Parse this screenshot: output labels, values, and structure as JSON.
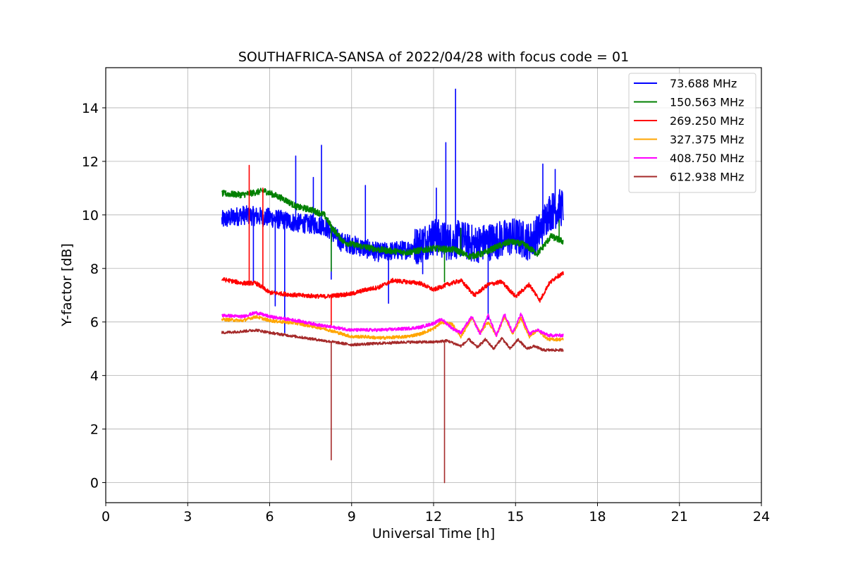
{
  "chart_data": {
    "type": "line",
    "title": "SOUTHAFRICA-SANSA of 2022/04/28 with focus code = 01",
    "xlabel": "Universal Time [h]",
    "ylabel": "Y-factor [dB]",
    "xlim": [
      0,
      24
    ],
    "ylim": [
      -0.75,
      15.5
    ],
    "xticks": [
      0,
      3,
      6,
      9,
      12,
      15,
      18,
      21,
      24
    ],
    "yticks": [
      0,
      2,
      4,
      6,
      8,
      10,
      12,
      14
    ],
    "grid": true,
    "legend_position": "top-right",
    "series": [
      {
        "name": " 73.688 MHz",
        "color": "#0000ff",
        "noise": 0.45,
        "x": [
          4.25,
          5,
          6,
          7,
          8,
          8.3,
          8.6,
          9,
          10,
          11,
          11.5,
          12,
          12.5,
          13,
          13.5,
          14,
          14.5,
          15,
          15.5,
          15.9,
          16.2,
          16.75
        ],
        "y": [
          9.8,
          10.0,
          9.9,
          9.7,
          9.6,
          9.3,
          9.0,
          8.9,
          8.6,
          8.7,
          8.9,
          9.2,
          9.0,
          9.1,
          8.9,
          9.0,
          9.1,
          9.2,
          9.0,
          9.4,
          10.1,
          10.3
        ],
        "spikes": [
          {
            "x": 5.4,
            "y": 7.5
          },
          {
            "x": 6.2,
            "y": 6.6
          },
          {
            "x": 6.55,
            "y": 5.6
          },
          {
            "x": 6.95,
            "y": 12.2
          },
          {
            "x": 7.6,
            "y": 11.4
          },
          {
            "x": 7.9,
            "y": 12.6
          },
          {
            "x": 8.25,
            "y": 7.6
          },
          {
            "x": 9.5,
            "y": 11.1
          },
          {
            "x": 10.35,
            "y": 6.7
          },
          {
            "x": 11.6,
            "y": 7.8
          },
          {
            "x": 12.1,
            "y": 11.0
          },
          {
            "x": 12.45,
            "y": 12.7
          },
          {
            "x": 12.8,
            "y": 14.7
          },
          {
            "x": 14.0,
            "y": 6.1
          },
          {
            "x": 16.0,
            "y": 11.9
          },
          {
            "x": 16.45,
            "y": 11.7
          }
        ]
      },
      {
        "name": "150.563 MHz",
        "color": "#008000",
        "noise": 0.12,
        "x": [
          4.25,
          5,
          5.8,
          6.5,
          7,
          7.5,
          8,
          8.3,
          8.7,
          9,
          9.5,
          10,
          11,
          12,
          12.8,
          13.3,
          13.8,
          14.3,
          14.8,
          15.3,
          15.8,
          16.0,
          16.3,
          16.75
        ],
        "y": [
          10.8,
          10.75,
          10.9,
          10.6,
          10.3,
          10.2,
          10.0,
          9.5,
          9.0,
          8.9,
          8.8,
          8.7,
          8.6,
          8.75,
          8.7,
          8.45,
          8.55,
          8.8,
          9.0,
          8.9,
          8.55,
          8.8,
          9.2,
          9.0
        ],
        "spikes": [
          {
            "x": 8.25,
            "y": 7.9
          },
          {
            "x": 12.4,
            "y": 7.5
          },
          {
            "x": 13.0,
            "y": 9.5
          },
          {
            "x": 16.6,
            "y": 9.8
          }
        ]
      },
      {
        "name": "269.250 MHz",
        "color": "#ff0000",
        "noise": 0.08,
        "x": [
          4.25,
          5,
          5.5,
          6,
          6.5,
          7,
          8,
          8.5,
          9,
          9.5,
          10,
          10.5,
          11,
          11.5,
          12,
          12.5,
          13,
          13.5,
          14,
          14.5,
          15,
          15.5,
          15.9,
          16.2,
          16.5,
          16.75
        ],
        "y": [
          7.6,
          7.45,
          7.45,
          7.1,
          7.05,
          7.0,
          6.95,
          7.0,
          7.05,
          7.2,
          7.3,
          7.55,
          7.5,
          7.45,
          7.2,
          7.4,
          7.55,
          7.0,
          7.4,
          7.5,
          6.95,
          7.4,
          6.8,
          7.4,
          7.7,
          7.8
        ],
        "spikes": [
          {
            "x": 5.25,
            "y": 11.85
          },
          {
            "x": 5.75,
            "y": 11.0
          },
          {
            "x": 8.25,
            "y": 5.8
          }
        ]
      },
      {
        "name": "327.375 MHz",
        "color": "#ffa500",
        "noise": 0.06,
        "x": [
          4.25,
          5,
          5.5,
          6,
          7,
          8,
          8.5,
          9,
          9.5,
          10,
          11,
          11.5,
          12,
          12.3,
          12.7,
          13.0,
          13.4,
          13.7,
          14.0,
          14.3,
          14.6,
          14.9,
          15.2,
          15.5,
          15.8,
          16.2,
          16.75
        ],
        "y": [
          6.1,
          6.05,
          6.2,
          6.05,
          5.95,
          5.75,
          5.6,
          5.45,
          5.45,
          5.4,
          5.45,
          5.55,
          5.75,
          6.0,
          5.9,
          5.45,
          6.15,
          5.6,
          6.0,
          5.5,
          6.2,
          5.55,
          6.15,
          5.45,
          5.7,
          5.35,
          5.35
        ],
        "spikes": []
      },
      {
        "name": "408.750 MHz",
        "color": "#ff00ff",
        "noise": 0.06,
        "x": [
          4.25,
          5,
          5.5,
          6,
          7,
          8,
          9,
          9.5,
          10,
          11,
          11.5,
          12,
          12.3,
          12.7,
          13.0,
          13.4,
          13.7,
          14.0,
          14.3,
          14.6,
          14.9,
          15.2,
          15.5,
          15.8,
          16.2,
          16.75
        ],
        "y": [
          6.25,
          6.2,
          6.35,
          6.2,
          6.05,
          5.85,
          5.7,
          5.7,
          5.7,
          5.75,
          5.8,
          5.95,
          6.1,
          5.75,
          5.6,
          6.2,
          5.55,
          6.25,
          5.5,
          6.3,
          5.6,
          6.3,
          5.55,
          5.7,
          5.5,
          5.5
        ],
        "spikes": []
      },
      {
        "name": "612.938 MHz",
        "color": "#a52a2a",
        "noise": 0.05,
        "x": [
          4.25,
          5,
          5.5,
          6,
          7,
          8,
          9,
          10,
          11,
          12,
          12.5,
          13.0,
          13.3,
          13.6,
          13.9,
          14.2,
          14.5,
          14.8,
          15.1,
          15.4,
          15.7,
          16.0,
          16.75
        ],
        "y": [
          5.6,
          5.65,
          5.7,
          5.6,
          5.45,
          5.3,
          5.15,
          5.2,
          5.25,
          5.25,
          5.3,
          5.1,
          5.35,
          5.05,
          5.35,
          5.0,
          5.4,
          5.0,
          5.35,
          5.0,
          5.1,
          4.95,
          4.95
        ],
        "spikes": [
          {
            "x": 8.25,
            "y": 0.85
          },
          {
            "x": 12.4,
            "y": 0.0
          }
        ]
      }
    ]
  }
}
